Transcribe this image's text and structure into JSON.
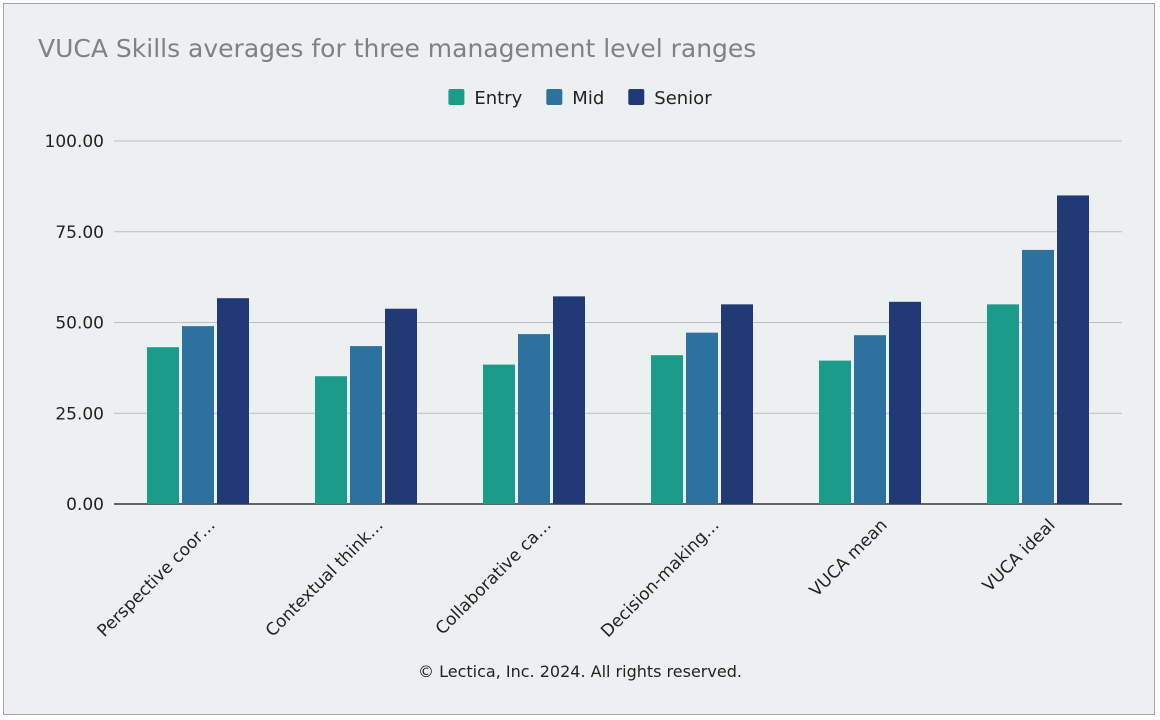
{
  "chart_data": {
    "type": "bar",
    "title": "VUCA Skills averages for three management level ranges",
    "xlabel": "",
    "ylabel": "",
    "categories": [
      "Perspective coor…",
      "Contextual think…",
      "Collaborative ca…",
      "Decision-making…",
      "VUCA mean",
      "VUCA ideal"
    ],
    "series": [
      {
        "name": "Entry",
        "color": "#1b9c8b",
        "values": [
          43.2,
          35.2,
          38.4,
          41.0,
          39.5,
          55.0
        ]
      },
      {
        "name": "Mid",
        "color": "#2d729e",
        "values": [
          49.0,
          43.5,
          46.8,
          47.2,
          46.5,
          70.0
        ]
      },
      {
        "name": "Senior",
        "color": "#213a76",
        "values": [
          56.7,
          53.8,
          57.2,
          55.0,
          55.7,
          85.0
        ]
      }
    ],
    "ylim": [
      0,
      100
    ],
    "yticks": [
      "0.00",
      "25.00",
      "50.00",
      "75.00",
      "100.00"
    ],
    "grid": true,
    "legend_position": "top-center"
  },
  "footer": {
    "copyright": "© Lectica, Inc. 2024. All rights reserved."
  }
}
